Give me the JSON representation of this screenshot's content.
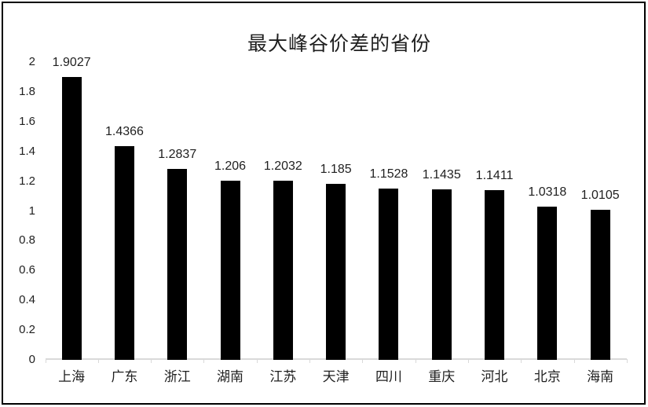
{
  "chart_data": {
    "type": "bar",
    "title": "最大峰谷价差的省份",
    "categories": [
      "上海",
      "广东",
      "浙江",
      "湖南",
      "江苏",
      "天津",
      "四川",
      "重庆",
      "河北",
      "北京",
      "海南"
    ],
    "values": [
      1.9027,
      1.4366,
      1.2837,
      1.206,
      1.2032,
      1.185,
      1.1528,
      1.1435,
      1.1411,
      1.0318,
      1.0105
    ],
    "data_labels": [
      "1.9027",
      "1.4366",
      "1.2837",
      "1.206",
      "1.2032",
      "1.185",
      "1.1528",
      "1.1435",
      "1.1411",
      "1.0318",
      "1.0105"
    ],
    "y_ticks": [
      {
        "value": 2,
        "label": "2"
      },
      {
        "value": 1.8,
        "label": "1.8"
      },
      {
        "value": 1.6,
        "label": "1.6"
      },
      {
        "value": 1.4,
        "label": "1.4"
      },
      {
        "value": 1.2,
        "label": "1.2"
      },
      {
        "value": 1,
        "label": "1"
      },
      {
        "value": 0.8,
        "label": "0.8"
      },
      {
        "value": 0.6,
        "label": "0.6"
      },
      {
        "value": 0.4,
        "label": "0.4"
      },
      {
        "value": 0.2,
        "label": "0.2"
      },
      {
        "value": 0,
        "label": "0"
      }
    ],
    "ylim": [
      0,
      2
    ],
    "xlabel": "",
    "ylabel": "",
    "grid": false,
    "legend": "none",
    "bar_color": "#000000",
    "axis_line_color": "#d9d9d9",
    "text_color": "#1f1f1f",
    "background_color": "#ffffff",
    "border_color": "#000000"
  }
}
